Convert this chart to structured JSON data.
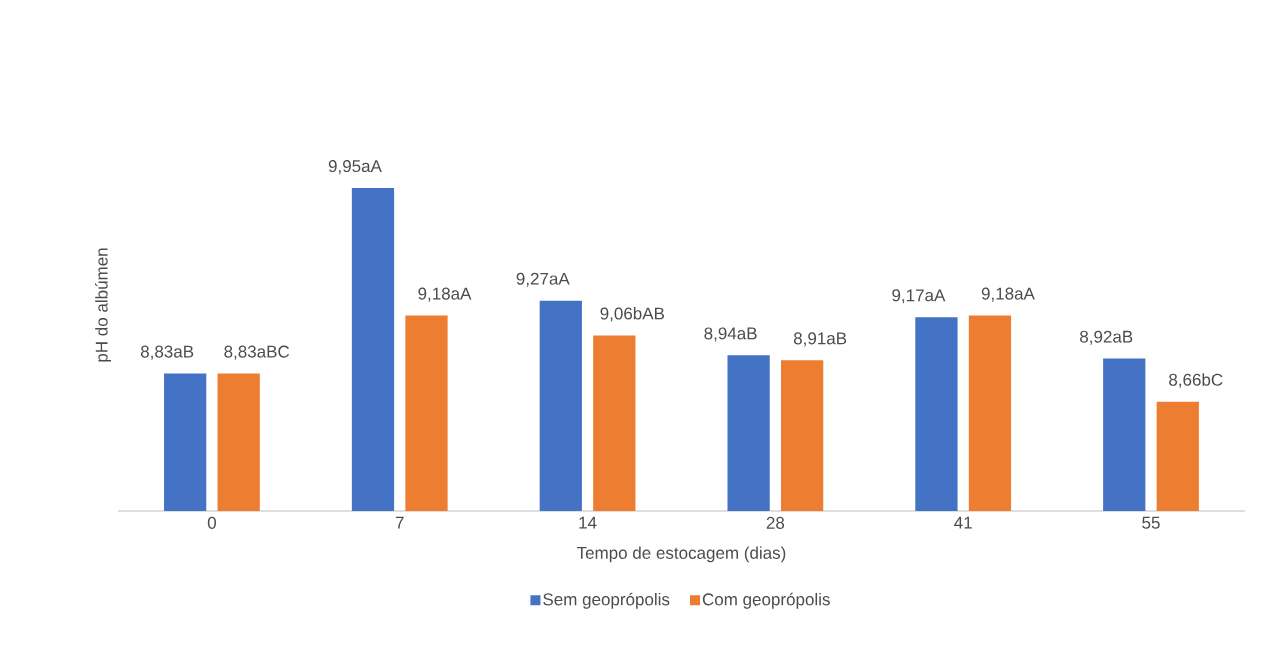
{
  "chart_data": {
    "type": "bar",
    "xlabel": "Tempo de estocagem (dias)",
    "ylabel": "pH do albúmen",
    "categories": [
      "0",
      "7",
      "14",
      "28",
      "41",
      "55"
    ],
    "ylim": [
      8,
      9.95
    ],
    "tick_labels": "x",
    "legend": "bottom",
    "series": [
      {
        "name": "Sem geoprópolis",
        "color": "#4472c4",
        "values": [
          8.83,
          9.95,
          9.27,
          8.94,
          9.17,
          8.92
        ],
        "value_labels": [
          "8,83aB",
          "9,95aA",
          "9,27aA",
          "8,94aB",
          "9,17aA",
          "8,92aB"
        ]
      },
      {
        "name": "Com geoprópolis",
        "color": "#ed7d31",
        "values": [
          8.83,
          9.18,
          9.06,
          8.91,
          9.18,
          8.66
        ],
        "value_labels": [
          "8,83aBC",
          "9,18aA",
          "9,06bAB",
          "8,91aB",
          "9,18aA",
          "8,66bC"
        ]
      }
    ]
  }
}
